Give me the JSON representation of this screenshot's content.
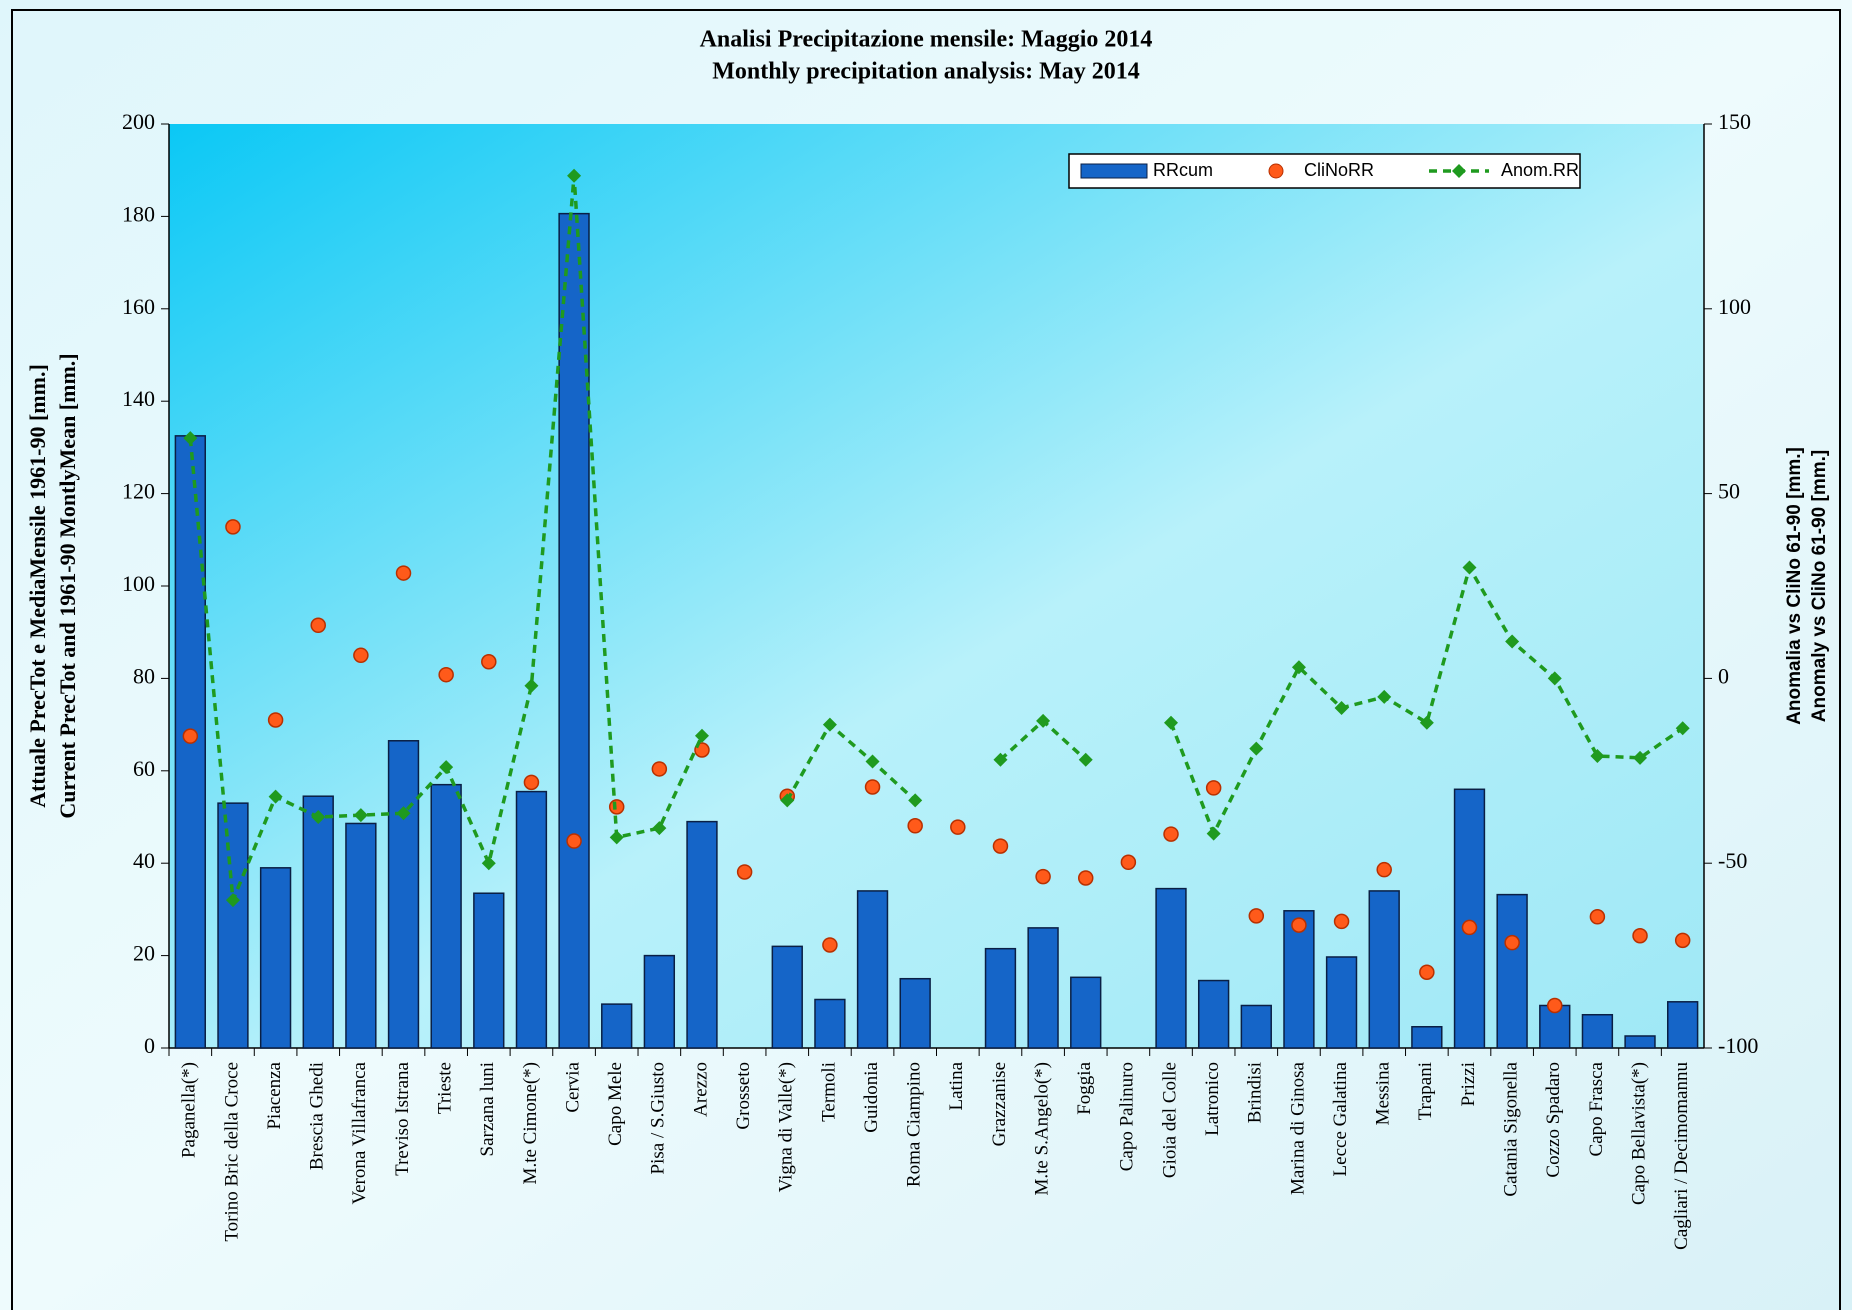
{
  "chart_data": {
    "type": "bar_line",
    "title": [
      "Analisi Precipitazione mensile: Maggio 2014",
      "Monthly precipitation analysis: May 2014"
    ],
    "ylabel": [
      "Attuale PrecTot e MediaMensile 1961-90 [mm.]",
      "Current PrecTot and 1961-90 MontlyMean [mm.]"
    ],
    "y2label": [
      "Anomalia vs CliNo 61-90 [mm.]",
      "Anomaly vs CliNo 61-90 [mm.]"
    ],
    "categories": [
      "Paganella(*)",
      "Torino Bric della Croce",
      "Piacenza",
      "Brescia Ghedi",
      "Verona Villafranca",
      "Treviso Istrana",
      "Trieste",
      "Sarzana luni",
      "M.te Cimone(*)",
      "Cervia",
      "Capo Mele",
      "Pisa / S.Giusto",
      "Arezzo",
      "Grosseto",
      "Vigna di Valle(*)",
      "Termoli",
      "Guidonia",
      "Roma Ciampino",
      "Latina",
      "Grazzanise",
      "M.te S.Angelo(*)",
      "Foggia",
      "Capo Palinuro",
      "Gioia del Colle",
      "Latronico",
      "Brindisi",
      "Marina di Ginosa",
      "Lecce Galatina",
      "Messina",
      "Trapani",
      "Prizzi",
      "Catania Sigonella",
      "Cozzo Spadaro",
      "Capo Frasca",
      "Capo Bellavista(*)",
      "Cagliari / Decimomannu"
    ],
    "series": [
      {
        "name": "RRcum",
        "kind": "bar",
        "color": "#1565c8",
        "values": [
          132.5,
          53,
          39,
          54.5,
          48.6,
          66.5,
          57,
          33.5,
          55.5,
          180.6,
          9.5,
          20,
          49,
          null,
          22,
          10.5,
          34,
          15,
          null,
          21.5,
          26,
          15.3,
          null,
          34.5,
          14.6,
          9.2,
          29.7,
          19.7,
          34,
          4.6,
          56,
          33.2,
          9.2,
          7.2,
          2.6,
          10
        ]
      },
      {
        "name": "CliNoRR",
        "kind": "dot",
        "color": "#ff5a1a",
        "values": [
          67.5,
          112.8,
          71,
          91.5,
          85,
          102.8,
          80.8,
          83.6,
          57.5,
          44.8,
          52.2,
          60.4,
          64.5,
          38.1,
          54.5,
          22.3,
          56.5,
          48.1,
          47.8,
          43.7,
          37.1,
          36.8,
          40.2,
          46.3,
          56.3,
          28.6,
          26.6,
          27.4,
          38.6,
          16.4,
          26.1,
          22.8,
          9.2,
          28.4,
          24.3,
          23.3
        ]
      },
      {
        "name": "Anom.RR",
        "kind": "line",
        "axis": "y2",
        "color": "#1f9a1f",
        "values": [
          65,
          -60,
          -32,
          -37.5,
          -37,
          -36.5,
          -24,
          -50,
          -2,
          136,
          -43,
          -40.5,
          -15.5,
          null,
          -33,
          -12.5,
          -22.5,
          -33,
          null,
          -22,
          -11.5,
          -22,
          null,
          -12,
          -42,
          -19,
          3,
          -8,
          -5,
          -12,
          30,
          10,
          0,
          -21,
          -21.5,
          -13.5
        ]
      }
    ],
    "ylim": [
      0,
      200
    ],
    "yticks": [
      0,
      20,
      40,
      60,
      80,
      100,
      120,
      140,
      160,
      180,
      200
    ],
    "y2lim": [
      -100,
      150
    ],
    "y2ticks": [
      -100,
      -50,
      0,
      50,
      100,
      150
    ],
    "legend": "upper right"
  }
}
